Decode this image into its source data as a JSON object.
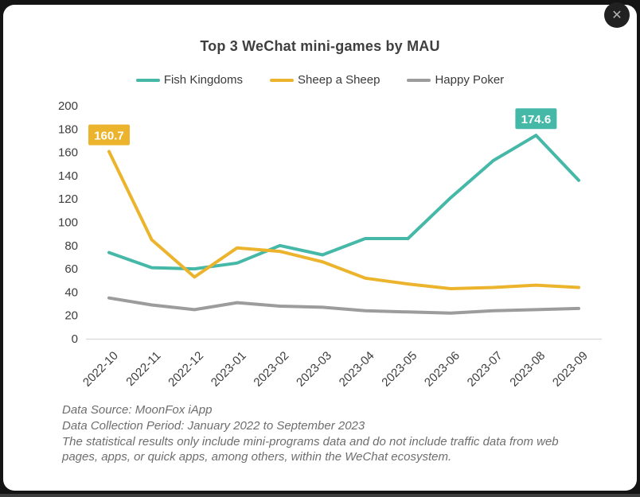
{
  "header": {
    "title": "Top 3 WeChat mini-games by MAU"
  },
  "modal": {
    "close_icon": "✕"
  },
  "colors": {
    "accent_teal": "#45b8a8",
    "accent_yellow": "#ecb42d",
    "accent_gray": "#9c9c9c",
    "axis_line": "#dcdcdc",
    "tick_text": "#3d3d3d",
    "page_backdrop": "#141414",
    "card_bg": "#ffffff"
  },
  "chart_data": {
    "type": "line",
    "title": "Top 3 WeChat mini-games by MAU",
    "categories": [
      "2022-10",
      "2022-11",
      "2022-12",
      "2023-01",
      "2023-02",
      "2023-03",
      "2023-04",
      "2023-05",
      "2023-06",
      "2023-07",
      "2023-08",
      "2023-09"
    ],
    "series": [
      {
        "name": "Fish Kingdoms",
        "color": "#45b8a8",
        "values": [
          74,
          61,
          60,
          65,
          80,
          72,
          86,
          86,
          121,
          153,
          174.6,
          136
        ]
      },
      {
        "name": "Sheep a Sheep",
        "color": "#ecb42d",
        "values": [
          160.7,
          85,
          53,
          78,
          75,
          66,
          52,
          47,
          43,
          44,
          46,
          44
        ]
      },
      {
        "name": "Happy Poker",
        "color": "#9c9c9c",
        "values": [
          35,
          29,
          25,
          31,
          28,
          27,
          24,
          23,
          22,
          24,
          25,
          26
        ]
      }
    ],
    "ylim": [
      0,
      200
    ],
    "yticks": [
      0,
      20,
      40,
      60,
      80,
      100,
      120,
      140,
      160,
      180,
      200
    ],
    "xlabel": "",
    "ylabel": "",
    "grid": false,
    "legend_position": "top",
    "x_tick_rotation": 45,
    "annotations": [
      {
        "series": "Sheep a Sheep",
        "category": "2022-10",
        "text": "160.7"
      },
      {
        "series": "Fish Kingdoms",
        "category": "2023-08",
        "text": "174.6"
      }
    ]
  },
  "footer": {
    "lines": [
      "Data Source: MoonFox iApp",
      "Data Collection Period: January 2022 to September 2023",
      "The statistical results only include mini-programs data and do not include traffic data from web pages, apps, or quick apps, among others, within the WeChat ecosystem."
    ]
  }
}
